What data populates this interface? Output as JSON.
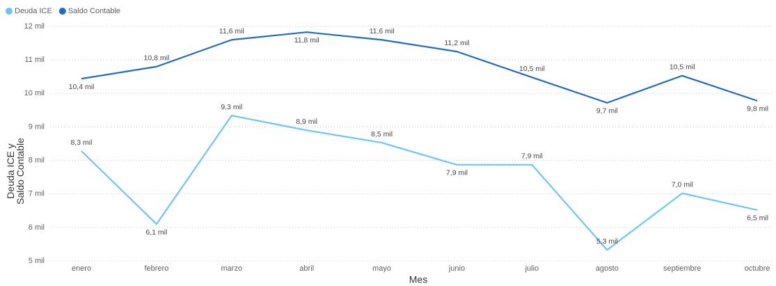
{
  "chart_data": {
    "type": "line",
    "x_label": "Mes",
    "y_label": "Deuda ICE y Saldo Contable",
    "categories": [
      "enero",
      "febrero",
      "marzo",
      "abril",
      "mayo",
      "junio",
      "julio",
      "agosto",
      "septiembre",
      "octubre"
    ],
    "series": [
      {
        "name": "Deuda ICE",
        "color": "#6cc5f7",
        "values": [
          8280,
          6100,
          9340,
          8900,
          8530,
          7870,
          7870,
          5330,
          7020,
          6520
        ],
        "value_labels": [
          "8,3 mil",
          "6,1 mil",
          "9,3 mil",
          "8,9 mil",
          "8,5 mil",
          "7,9 mil",
          "7,9 mil",
          "5,3 mil",
          "7,0 mil",
          "6,5 mil"
        ]
      },
      {
        "name": "Saldo Contable",
        "color": "#1f6bbf",
        "values": [
          10440,
          10800,
          11600,
          11830,
          11600,
          11250,
          10480,
          9720,
          10530,
          9780
        ],
        "value_labels": [
          "10,4 mil",
          "10,8 mil",
          "11,6 mil",
          "11,8 mil",
          "11,6 mil",
          "11,2 mil",
          "10,5 mil",
          "9,7 mil",
          "10,5 mil",
          "9,8 mil"
        ]
      }
    ],
    "ylim": [
      5000,
      12000
    ],
    "yticks": [
      {
        "value": 5000,
        "label": "5 mil"
      },
      {
        "value": 6000,
        "label": "6 mil"
      },
      {
        "value": 7000,
        "label": "7 mil"
      },
      {
        "value": 8000,
        "label": "8 mil"
      },
      {
        "value": 9000,
        "label": "9 mil"
      },
      {
        "value": 10000,
        "label": "10 mil"
      },
      {
        "value": 11000,
        "label": "11 mil"
      },
      {
        "value": 12000,
        "label": "12 mil"
      }
    ],
    "grid": true,
    "legend": "top-left"
  }
}
